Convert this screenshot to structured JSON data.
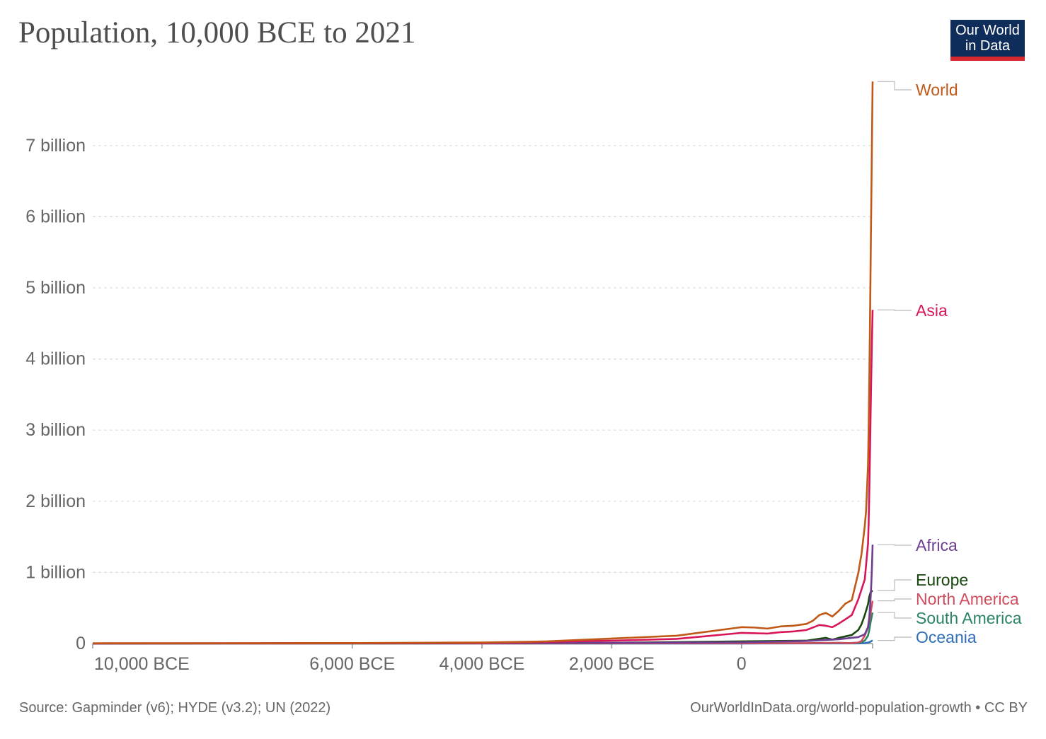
{
  "title": "Population, 10,000 BCE to 2021",
  "logo": {
    "line1": "Our World",
    "line2": "in Data"
  },
  "footer": {
    "source": "Source: Gapminder (v6); HYDE (v3.2); UN (2022)",
    "credit": "OurWorldInData.org/world-population-growth • CC BY"
  },
  "colors": {
    "World": "#c05917",
    "Asia": "#d8175a",
    "Africa": "#6d3e91",
    "Europe": "#18470f",
    "North America": "#cf4d5d",
    "South America": "#2c8465",
    "Oceania": "#2f6eb8",
    "grid": "#dddddd",
    "tick_text": "#666666"
  },
  "chart_data": {
    "type": "line",
    "xlim": [
      -10000,
      2021
    ],
    "ylim": [
      0,
      8000000000
    ],
    "grid": "horizontal dashed",
    "legend": "right, labels at line ends",
    "x_ticks": [
      {
        "value": -10000,
        "label": "10,000 BCE"
      },
      {
        "value": -6000,
        "label": "6,000 BCE"
      },
      {
        "value": -4000,
        "label": "4,000 BCE"
      },
      {
        "value": -2000,
        "label": "2,000 BCE"
      },
      {
        "value": 0,
        "label": "0"
      },
      {
        "value": 2021,
        "label": "2021"
      }
    ],
    "y_ticks": [
      {
        "value": 0,
        "label": "0"
      },
      {
        "value": 1000000000,
        "label": "1 billion"
      },
      {
        "value": 2000000000,
        "label": "2 billion"
      },
      {
        "value": 3000000000,
        "label": "3 billion"
      },
      {
        "value": 4000000000,
        "label": "4 billion"
      },
      {
        "value": 5000000000,
        "label": "5 billion"
      },
      {
        "value": 6000000000,
        "label": "6 billion"
      },
      {
        "value": 7000000000,
        "label": "7 billion"
      }
    ],
    "series": [
      {
        "name": "World",
        "points": [
          [
            -10000,
            4500000
          ],
          [
            -8000,
            5000000
          ],
          [
            -6000,
            7000000
          ],
          [
            -4000,
            15000000
          ],
          [
            -3000,
            30000000
          ],
          [
            -2000,
            70000000
          ],
          [
            -1000,
            110000000
          ],
          [
            0,
            230000000
          ],
          [
            200,
            225000000
          ],
          [
            400,
            210000000
          ],
          [
            600,
            240000000
          ],
          [
            800,
            250000000
          ],
          [
            1000,
            275000000
          ],
          [
            1100,
            320000000
          ],
          [
            1200,
            400000000
          ],
          [
            1300,
            430000000
          ],
          [
            1400,
            380000000
          ],
          [
            1500,
            460000000
          ],
          [
            1600,
            560000000
          ],
          [
            1700,
            610000000
          ],
          [
            1800,
            990000000
          ],
          [
            1850,
            1260000000
          ],
          [
            1900,
            1650000000
          ],
          [
            1920,
            1860000000
          ],
          [
            1950,
            2500000000
          ],
          [
            1960,
            3020000000
          ],
          [
            1970,
            3700000000
          ],
          [
            1980,
            4440000000
          ],
          [
            1990,
            5320000000
          ],
          [
            2000,
            6140000000
          ],
          [
            2010,
            6980000000
          ],
          [
            2021,
            7900000000
          ]
        ]
      },
      {
        "name": "Asia",
        "points": [
          [
            -10000,
            2000000
          ],
          [
            -6000,
            4000000
          ],
          [
            -4000,
            9000000
          ],
          [
            -2000,
            40000000
          ],
          [
            -1000,
            65000000
          ],
          [
            0,
            150000000
          ],
          [
            200,
            145000000
          ],
          [
            400,
            140000000
          ],
          [
            600,
            160000000
          ],
          [
            800,
            170000000
          ],
          [
            1000,
            190000000
          ],
          [
            1200,
            260000000
          ],
          [
            1300,
            250000000
          ],
          [
            1400,
            230000000
          ],
          [
            1500,
            280000000
          ],
          [
            1600,
            340000000
          ],
          [
            1700,
            400000000
          ],
          [
            1800,
            620000000
          ],
          [
            1850,
            760000000
          ],
          [
            1900,
            900000000
          ],
          [
            1950,
            1400000000
          ],
          [
            1960,
            1700000000
          ],
          [
            1970,
            2140000000
          ],
          [
            1980,
            2650000000
          ],
          [
            1990,
            3220000000
          ],
          [
            2000,
            3740000000
          ],
          [
            2010,
            4210000000
          ],
          [
            2021,
            4690000000
          ]
        ]
      },
      {
        "name": "Africa",
        "points": [
          [
            -10000,
            500000
          ],
          [
            -2000,
            10000000
          ],
          [
            0,
            17000000
          ],
          [
            1000,
            35000000
          ],
          [
            1500,
            60000000
          ],
          [
            1700,
            80000000
          ],
          [
            1800,
            90000000
          ],
          [
            1900,
            130000000
          ],
          [
            1950,
            230000000
          ],
          [
            1970,
            370000000
          ],
          [
            1990,
            640000000
          ],
          [
            2000,
            820000000
          ],
          [
            2010,
            1050000000
          ],
          [
            2021,
            1390000000
          ]
        ]
      },
      {
        "name": "Europe",
        "points": [
          [
            -10000,
            300000
          ],
          [
            -2000,
            10000000
          ],
          [
            0,
            30000000
          ],
          [
            1000,
            40000000
          ],
          [
            1300,
            80000000
          ],
          [
            1400,
            55000000
          ],
          [
            1500,
            80000000
          ],
          [
            1600,
            100000000
          ],
          [
            1700,
            120000000
          ],
          [
            1800,
            190000000
          ],
          [
            1850,
            270000000
          ],
          [
            1900,
            400000000
          ],
          [
            1950,
            550000000
          ],
          [
            1970,
            660000000
          ],
          [
            1990,
            720000000
          ],
          [
            2021,
            745000000
          ]
        ]
      },
      {
        "name": "North America",
        "points": [
          [
            -10000,
            200000
          ],
          [
            0,
            3000000
          ],
          [
            1000,
            6000000
          ],
          [
            1500,
            10000000
          ],
          [
            1600,
            8000000
          ],
          [
            1700,
            6000000
          ],
          [
            1800,
            15000000
          ],
          [
            1850,
            35000000
          ],
          [
            1900,
            110000000
          ],
          [
            1950,
            230000000
          ],
          [
            1970,
            320000000
          ],
          [
            1990,
            430000000
          ],
          [
            2010,
            540000000
          ],
          [
            2021,
            600000000
          ]
        ]
      },
      {
        "name": "South America",
        "points": [
          [
            -10000,
            100000
          ],
          [
            0,
            2000000
          ],
          [
            1000,
            5000000
          ],
          [
            1500,
            10000000
          ],
          [
            1600,
            7000000
          ],
          [
            1700,
            8000000
          ],
          [
            1800,
            12000000
          ],
          [
            1850,
            20000000
          ],
          [
            1900,
            40000000
          ],
          [
            1950,
            110000000
          ],
          [
            1970,
            190000000
          ],
          [
            1990,
            300000000
          ],
          [
            2010,
            390000000
          ],
          [
            2021,
            435000000
          ]
        ]
      },
      {
        "name": "Oceania",
        "points": [
          [
            -10000,
            100000
          ],
          [
            0,
            1000000
          ],
          [
            1000,
            1500000
          ],
          [
            1800,
            2000000
          ],
          [
            1900,
            6000000
          ],
          [
            1950,
            13000000
          ],
          [
            1990,
            27000000
          ],
          [
            2021,
            44000000
          ]
        ]
      }
    ],
    "labels": [
      {
        "series": "World",
        "text": "World"
      },
      {
        "series": "Asia",
        "text": "Asia"
      },
      {
        "series": "Africa",
        "text": "Africa"
      },
      {
        "series": "Europe",
        "text": "Europe"
      },
      {
        "series": "North America",
        "text": "North America"
      },
      {
        "series": "South America",
        "text": "South America"
      },
      {
        "series": "Oceania",
        "text": "Oceania"
      }
    ]
  }
}
